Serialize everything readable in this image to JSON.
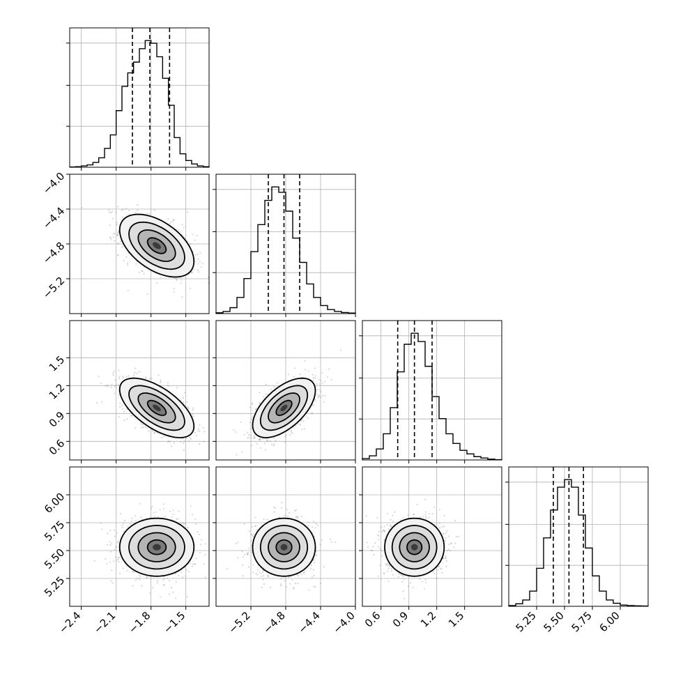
{
  "chart_data": {
    "type": "corner",
    "grid": true,
    "parameters": [
      {
        "mean": -1.75,
        "sd": 0.16,
        "range": [
          -2.5,
          -1.3
        ],
        "ticks": [
          -2.4,
          -2.1,
          -1.8,
          -1.5
        ],
        "tick_labels": [
          "−2.4",
          "−2.1",
          "−1.8",
          "−1.5"
        ],
        "quantiles": [
          -1.96,
          -1.81,
          -1.64
        ],
        "hist_x": [
          -2.475,
          -2.425,
          -2.375,
          -2.325,
          -2.275,
          -2.225,
          -2.175,
          -2.125,
          -2.075,
          -2.025,
          -1.975,
          -1.925,
          -1.875,
          -1.825,
          -1.775,
          -1.725,
          -1.675,
          -1.625,
          -1.575,
          -1.525,
          -1.475,
          -1.425,
          -1.375,
          -1.325
        ],
        "hist_y": [
          1,
          2,
          5,
          9,
          18,
          35,
          70,
          120,
          210,
          300,
          350,
          390,
          440,
          470,
          460,
          410,
          330,
          230,
          110,
          50,
          25,
          12,
          5,
          2
        ]
      },
      {
        "mean": -4.82,
        "sd": 0.18,
        "range": [
          -5.6,
          -4.0
        ],
        "ticks": [
          -5.2,
          -4.8,
          -4.4,
          -4.0
        ],
        "tick_labels": [
          "−5.2",
          "−4.8",
          "−4.4",
          "−4.0"
        ],
        "quantiles": [
          -5.0,
          -4.82,
          -4.64
        ],
        "hist_x": [
          -5.56,
          -5.48,
          -5.4,
          -5.32,
          -5.24,
          -5.16,
          -5.08,
          -5.0,
          -4.92,
          -4.84,
          -4.76,
          -4.68,
          -4.6,
          -4.52,
          -4.44,
          -4.36,
          -4.28,
          -4.2,
          -4.12,
          -4.04
        ],
        "hist_y": [
          3,
          8,
          22,
          60,
          130,
          230,
          330,
          420,
          470,
          450,
          380,
          280,
          190,
          110,
          60,
          30,
          15,
          8,
          4,
          2
        ]
      },
      {
        "mean": 0.96,
        "sd": 0.16,
        "range": [
          0.4,
          1.9
        ],
        "ticks": [
          0.6,
          0.9,
          1.2,
          1.5
        ],
        "tick_labels": [
          "0.6",
          "0.9",
          "1.2",
          "1.5"
        ],
        "quantiles": [
          0.78,
          0.96,
          1.15
        ],
        "hist_x": [
          0.4375,
          0.5125,
          0.5875,
          0.6625,
          0.7375,
          0.8125,
          0.8875,
          0.9625,
          1.0375,
          1.1125,
          1.1875,
          1.2625,
          1.3375,
          1.4125,
          1.4875,
          1.5625,
          1.6375,
          1.7125,
          1.7875,
          1.8625
        ],
        "hist_y": [
          5,
          15,
          40,
          95,
          190,
          320,
          420,
          460,
          430,
          340,
          230,
          150,
          95,
          60,
          35,
          22,
          12,
          7,
          3,
          1
        ]
      },
      {
        "mean": 5.53,
        "sd": 0.13,
        "range": [
          5.0,
          6.25
        ],
        "ticks": [
          5.25,
          5.5,
          5.75,
          6.0
        ],
        "tick_labels": [
          "5.25",
          "5.50",
          "5.75",
          "6.00"
        ],
        "quantiles": [
          5.4,
          5.54,
          5.67
        ],
        "hist_x": [
          5.03125,
          5.09375,
          5.15625,
          5.21875,
          5.28125,
          5.34375,
          5.40625,
          5.46875,
          5.53125,
          5.59375,
          5.65625,
          5.71875,
          5.78125,
          5.84375,
          5.90625,
          5.96875,
          6.03125,
          6.09375,
          6.15625,
          6.21875
        ],
        "hist_y": [
          3,
          10,
          25,
          60,
          150,
          270,
          380,
          470,
          500,
          470,
          360,
          230,
          120,
          60,
          25,
          12,
          5,
          3,
          2,
          1
        ]
      }
    ],
    "pairs": [
      {
        "row": 1,
        "col": 0,
        "rho": -0.5
      },
      {
        "row": 2,
        "col": 0,
        "rho": -0.62
      },
      {
        "row": 2,
        "col": 1,
        "rho": 0.58
      },
      {
        "row": 3,
        "col": 0,
        "rho": 0.0
      },
      {
        "row": 3,
        "col": 1,
        "rho": 0.0
      },
      {
        "row": 3,
        "col": 2,
        "rho": 0.0
      }
    ],
    "contour_levels_sigma": [
      0.5,
      1.0,
      1.5,
      2.0
    ],
    "colors": {
      "line": "#000000",
      "grid": "#b0b0b0",
      "points": "#8a8a8a"
    }
  }
}
